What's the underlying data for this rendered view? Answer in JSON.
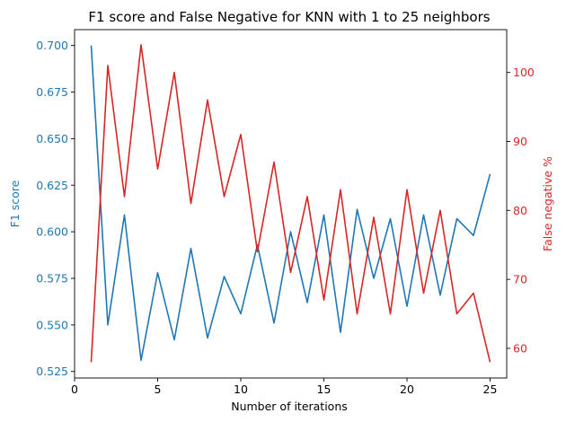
{
  "chart_data": {
    "type": "line",
    "title": "F1 score and False Negative for KNN with 1 to 25 neighbors",
    "xlabel": "Number of iterations",
    "ylabel_left": "F1 score",
    "ylabel_right": "False negative %",
    "xlim": [
      0,
      26
    ],
    "ylim_left": [
      0.5215,
      0.7085
    ],
    "ylim_right": [
      55.7,
      106.2
    ],
    "x_ticks": [
      0,
      5,
      10,
      15,
      20,
      25
    ],
    "y_left_ticks": [
      0.525,
      0.55,
      0.575,
      0.6,
      0.625,
      0.65,
      0.675,
      0.7
    ],
    "y_left_tick_labels": [
      "0.525",
      "0.550",
      "0.575",
      "0.600",
      "0.625",
      "0.650",
      "0.675",
      "0.700"
    ],
    "y_right_ticks": [
      60,
      70,
      80,
      90,
      100
    ],
    "grid": false,
    "legend": "none",
    "colors": {
      "left_series": "#1f77b4",
      "right_series": "#d62728",
      "axes": "#000000"
    },
    "x": [
      1,
      2,
      3,
      4,
      5,
      6,
      7,
      8,
      9,
      10,
      11,
      12,
      13,
      14,
      15,
      16,
      17,
      18,
      19,
      20,
      21,
      22,
      23,
      24,
      25
    ],
    "series": [
      {
        "axis": "left",
        "values": [
          0.7,
          0.55,
          0.609,
          0.531,
          0.578,
          0.542,
          0.591,
          0.543,
          0.576,
          0.556,
          0.593,
          0.551,
          0.6,
          0.562,
          0.609,
          0.546,
          0.612,
          0.575,
          0.607,
          0.56,
          0.609,
          0.566,
          0.607,
          0.598,
          0.631
        ]
      },
      {
        "axis": "right",
        "values": [
          58,
          101,
          82,
          104,
          86,
          100,
          81,
          96,
          82,
          91,
          74,
          87,
          71,
          82,
          67,
          83,
          65,
          79,
          65,
          83,
          68,
          80,
          65,
          68,
          58
        ]
      }
    ]
  }
}
